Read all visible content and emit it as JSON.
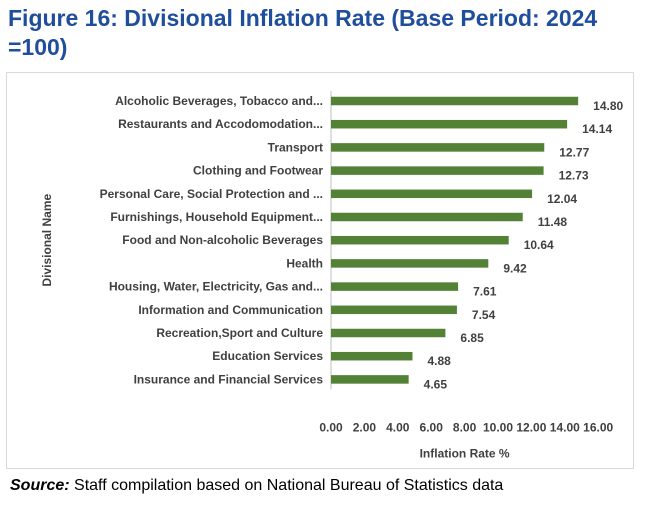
{
  "figure": {
    "title": "Figure 16: Divisional Inflation Rate (Base Period: 2024 =100)",
    "source_label": "Source:",
    "source_text": "Staff compilation based on National Bureau of Statistics data"
  },
  "chart_data": {
    "type": "bar",
    "orientation": "horizontal",
    "title": "",
    "xlabel": "Inflation Rate %",
    "ylabel": "Divisional Name",
    "xlim": [
      0,
      16
    ],
    "xticks": [
      "0.00",
      "2.00",
      "4.00",
      "6.00",
      "8.00",
      "10.00",
      "12.00",
      "14.00",
      "16.00"
    ],
    "grid": false,
    "bar_color": "#538135",
    "categories": [
      "Alcoholic Beverages, Tobacco and...",
      "Restaurants and Accodomodation...",
      "Transport",
      "Clothing and Footwear",
      "Personal Care, Social Protection and ...",
      "Furnishings, Household Equipment...",
      "Food and Non-alcoholic Beverages",
      "Health",
      "Housing, Water, Electricity, Gas and...",
      "Information and Communication",
      "Recreation,Sport and Culture",
      "Education Services",
      "Insurance and Financial Services"
    ],
    "values": [
      14.8,
      14.14,
      12.77,
      12.73,
      12.04,
      11.48,
      10.64,
      9.42,
      7.61,
      7.54,
      6.85,
      4.88,
      4.65
    ],
    "value_labels": [
      "14.80",
      "14.14",
      "12.77",
      "12.73",
      "12.04",
      "11.48",
      "10.64",
      "9.42",
      "7.61",
      "7.54",
      "6.85",
      "4.88",
      "4.65"
    ]
  }
}
